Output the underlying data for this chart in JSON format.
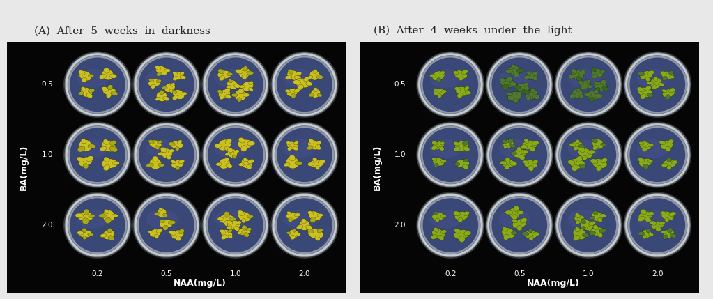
{
  "panel_A_title": "(A)  After  5  weeks  in  darkness",
  "panel_B_title": "(B)  After  4  weeks  under  the  light",
  "ba_labels": [
    "0.5",
    "1.0",
    "2.0"
  ],
  "naa_labels": [
    "0.2",
    "0.5",
    "1.0",
    "2.0"
  ],
  "ba_axis_label": "BA(mg/L)",
  "naa_axis_label": "NAA(mg/L)",
  "bg_color": "#050505",
  "figure_bg": "#e8e8e8",
  "title_color": "#222222",
  "label_color": "#ffffff",
  "dish_fill": "#3a4878",
  "dish_rim_outer": "#c8ccd0",
  "dish_rim_inner": "#9098a8",
  "plant_yellow": "#ccc020",
  "plant_yellow2": "#a8a818",
  "plant_green": "#507830",
  "plant_green2": "#386820",
  "plant_ygreen": "#8aaa18"
}
